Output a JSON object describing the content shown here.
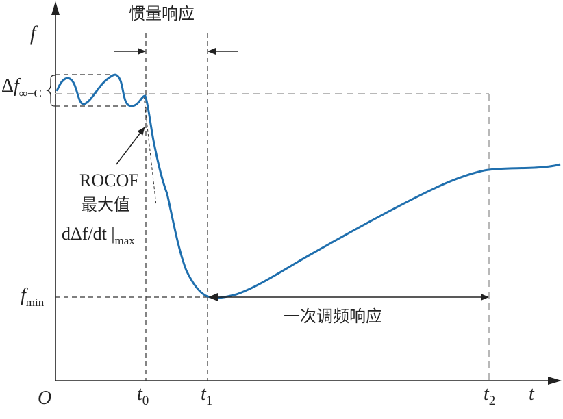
{
  "labels": {
    "origin": "O",
    "y_axis": "f",
    "x_axis": "t",
    "t0": "t",
    "t0_sub": "0",
    "t1": "t",
    "t1_sub": "1",
    "t2": "t",
    "t2_sub": "2",
    "delta_f_prefix": "Δ",
    "delta_f_var": "f",
    "delta_f_sub": "∞−C",
    "fmin_var": "f",
    "fmin_sub": "min",
    "inertia_response": "惯量响应",
    "primary_response": "一次调频响应",
    "rocof_line1": "ROCOF",
    "rocof_line2": "最大值",
    "rocof_formula": "dΔf/dt |",
    "rocof_sub": "max"
  },
  "colors": {
    "curve": "#1f6fae",
    "axis": "#222222",
    "dashed_dark": "#333333",
    "dashed_grey": "#b8b8b8"
  }
}
